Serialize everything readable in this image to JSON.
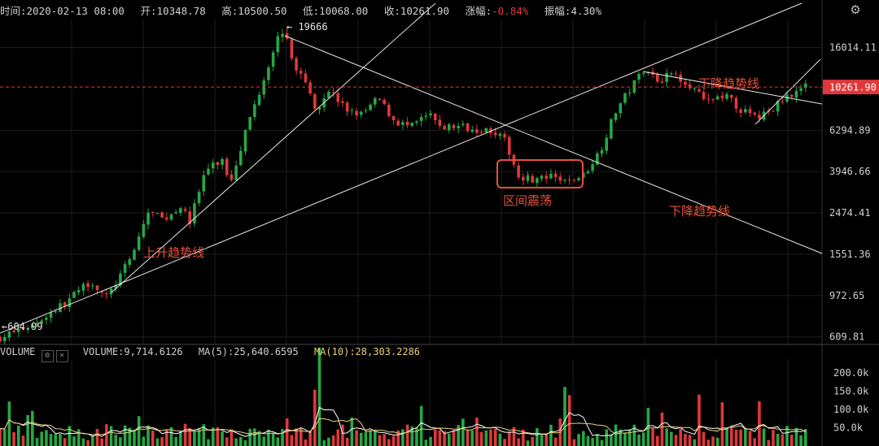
{
  "header": {
    "time_label": "时间:",
    "time": "2020-02-13 08:00",
    "open_label": "开:",
    "open": "10348.78",
    "high_label": "高:",
    "high": "10500.50",
    "low_label": "低:",
    "low": "10068.00",
    "close_label": "收:",
    "close": "10261.90",
    "change_label": "涨幅:",
    "change": "-0.84%",
    "amplitude_label": "振幅:",
    "amplitude": "4.30%"
  },
  "volume_header": {
    "label": "VOLUME",
    "volume_label": "VOLUME:",
    "volume": "9,714.6126",
    "ma5_label": "MA(5):",
    "ma5": "25,640.6595",
    "ma10_label": "MA(10):",
    "ma10": "28,303.2286"
  },
  "colors": {
    "up": "#27a844",
    "down": "#e0383a",
    "annotation": "#e8503a",
    "ma10": "#e8d17a",
    "grid": "#1e1e1e"
  },
  "chart_data": {
    "type": "candlestick",
    "scale": "log",
    "y_ticks": [
      "16014.11",
      "6294.89",
      "3946.66",
      "2474.41",
      "1551.36",
      "972.65",
      "609.81"
    ],
    "y_tick_values": [
      16014.11,
      6294.89,
      3946.66,
      2474.41,
      1551.36,
      972.65,
      609.81
    ],
    "current_price_label": "10261.90",
    "current_price": 10261.9,
    "high_marker": "19666",
    "low_marker": "604.99",
    "annotations": [
      "上升趋势线",
      "区间震荡",
      "下降趋势线",
      "下降趋势线"
    ],
    "volume_ticks": [
      "200.0k",
      "150.0k",
      "100.0k",
      "50.0k"
    ],
    "volume_tick_values": [
      200000,
      150000,
      100000,
      50000
    ],
    "price_path": [
      [
        0,
        605
      ],
      [
        0.04,
        700
      ],
      [
        0.08,
        900
      ],
      [
        0.11,
        1150
      ],
      [
        0.13,
        950
      ],
      [
        0.16,
        1500
      ],
      [
        0.18,
        2500
      ],
      [
        0.2,
        2300
      ],
      [
        0.22,
        2700
      ],
      [
        0.23,
        2200
      ],
      [
        0.25,
        4000
      ],
      [
        0.27,
        4500
      ],
      [
        0.28,
        3500
      ],
      [
        0.3,
        6500
      ],
      [
        0.32,
        11000
      ],
      [
        0.335,
        17000
      ],
      [
        0.345,
        19666
      ],
      [
        0.355,
        14000
      ],
      [
        0.37,
        11000
      ],
      [
        0.385,
        8000
      ],
      [
        0.4,
        10000
      ],
      [
        0.42,
        8000
      ],
      [
        0.44,
        7500
      ],
      [
        0.46,
        9000
      ],
      [
        0.48,
        7000
      ],
      [
        0.5,
        6500
      ],
      [
        0.52,
        7500
      ],
      [
        0.54,
        6500
      ],
      [
        0.56,
        6600
      ],
      [
        0.58,
        6400
      ],
      [
        0.6,
        6300
      ],
      [
        0.615,
        5500
      ],
      [
        0.63,
        3800
      ],
      [
        0.65,
        3600
      ],
      [
        0.67,
        3700
      ],
      [
        0.69,
        3500
      ],
      [
        0.71,
        3800
      ],
      [
        0.73,
        5000
      ],
      [
        0.75,
        8000
      ],
      [
        0.77,
        10500
      ],
      [
        0.785,
        13000
      ],
      [
        0.8,
        11000
      ],
      [
        0.82,
        12000
      ],
      [
        0.84,
        10500
      ],
      [
        0.86,
        8500
      ],
      [
        0.88,
        9500
      ],
      [
        0.9,
        8000
      ],
      [
        0.92,
        7200
      ],
      [
        0.94,
        8000
      ],
      [
        0.96,
        9500
      ],
      [
        0.98,
        10261.9
      ]
    ]
  }
}
